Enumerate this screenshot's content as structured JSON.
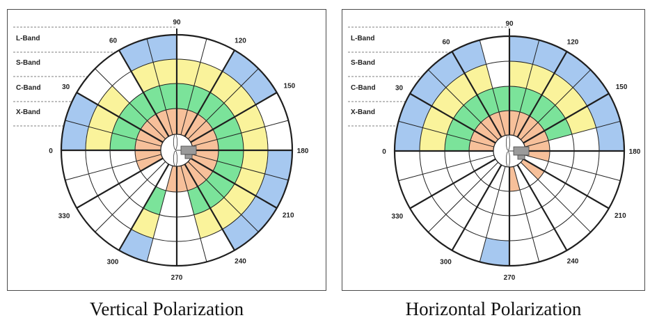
{
  "band_labels": [
    "L-Band",
    "S-Band",
    "C-Band",
    "X-Band"
  ],
  "angle_labels": [
    "0",
    "30",
    "60",
    "90",
    "120",
    "150",
    "180",
    "210",
    "240",
    "270",
    "300",
    "330"
  ],
  "colors": {
    "L-Band": "#a6c8f0",
    "S-Band": "#faf39b",
    "C-Band": "#7be39a",
    "X-Band": "#f7c09a",
    "empty": "#ffffff",
    "grid": "#1f1f1f"
  },
  "diagrams": [
    {
      "caption": "Vertical Polarization",
      "ring_order": [
        "X-Band",
        "C-Band",
        "S-Band",
        "L-Band"
      ],
      "sectors_description": "24 sectors of 15 degrees each, starting at 0 deg (left), increasing clockwise toward 90 (top)",
      "sectors": [
        [
          "X-Band",
          "C-Band",
          "S-Band",
          "L-Band"
        ],
        [
          "X-Band",
          "C-Band",
          "S-Band",
          "L-Band"
        ],
        [
          "X-Band",
          "C-Band",
          "S-Band",
          "empty"
        ],
        [
          "X-Band",
          "C-Band",
          "empty",
          "empty"
        ],
        [
          "X-Band",
          "C-Band",
          "S-Band",
          "L-Band"
        ],
        [
          "X-Band",
          "C-Band",
          "S-Band",
          "L-Band"
        ],
        [
          "X-Band",
          "C-Band",
          "S-Band",
          "empty"
        ],
        [
          "X-Band",
          "C-Band",
          "S-Band",
          "empty"
        ],
        [
          "X-Band",
          "C-Band",
          "S-Band",
          "L-Band"
        ],
        [
          "X-Band",
          "C-Band",
          "S-Band",
          "L-Band"
        ],
        [
          "X-Band",
          "C-Band",
          "S-Band",
          "empty"
        ],
        [
          "X-Band",
          "C-Band",
          "S-Band",
          "empty"
        ],
        [
          "X-Band",
          "C-Band",
          "S-Band",
          "L-Band"
        ],
        [
          "X-Band",
          "C-Band",
          "S-Band",
          "L-Band"
        ],
        [
          "X-Band",
          "C-Band",
          "S-Band",
          "L-Band"
        ],
        [
          "X-Band",
          "C-Band",
          "S-Band",
          "L-Band"
        ],
        [
          "X-Band",
          "C-Band",
          "S-Band",
          "empty"
        ],
        [
          "X-Band",
          "empty",
          "empty",
          "empty"
        ],
        [
          "X-Band",
          "empty",
          "empty",
          "empty"
        ],
        [
          "empty",
          "C-Band",
          "S-Band",
          "L-Band"
        ],
        [
          "empty",
          "empty",
          "empty",
          "empty"
        ],
        [
          "empty",
          "empty",
          "empty",
          "empty"
        ],
        [
          "X-Band",
          "empty",
          "empty",
          "empty"
        ],
        [
          "X-Band",
          "empty",
          "empty",
          "empty"
        ]
      ]
    },
    {
      "caption": "Horizontal Polarization",
      "ring_order": [
        "X-Band",
        "C-Band",
        "S-Band",
        "L-Band"
      ],
      "sectors_description": "24 sectors of 15 degrees each, starting at 0 deg (left), increasing clockwise toward 90 (top)",
      "sectors": [
        [
          "X-Band",
          "C-Band",
          "S-Band",
          "L-Band"
        ],
        [
          "X-Band",
          "C-Band",
          "S-Band",
          "L-Band"
        ],
        [
          "X-Band",
          "C-Band",
          "S-Band",
          "L-Band"
        ],
        [
          "X-Band",
          "C-Band",
          "S-Band",
          "L-Band"
        ],
        [
          "X-Band",
          "C-Band",
          "S-Band",
          "L-Band"
        ],
        [
          "X-Band",
          "C-Band",
          "empty",
          "empty"
        ],
        [
          "X-Band",
          "C-Band",
          "S-Band",
          "L-Band"
        ],
        [
          "X-Band",
          "C-Band",
          "S-Band",
          "L-Band"
        ],
        [
          "X-Band",
          "C-Band",
          "S-Band",
          "L-Band"
        ],
        [
          "X-Band",
          "C-Band",
          "S-Band",
          "L-Band"
        ],
        [
          "X-Band",
          "C-Band",
          "S-Band",
          "L-Band"
        ],
        [
          "X-Band",
          "empty",
          "empty",
          "L-Band"
        ],
        [
          "X-Band",
          "empty",
          "empty",
          "empty"
        ],
        [
          "empty",
          "empty",
          "empty",
          "empty"
        ],
        [
          "X-Band",
          "empty",
          "empty",
          "empty"
        ],
        [
          "empty",
          "empty",
          "empty",
          "empty"
        ],
        [
          "empty",
          "empty",
          "empty",
          "empty"
        ],
        [
          "X-Band",
          "empty",
          "empty",
          "empty"
        ],
        [
          "empty",
          "empty",
          "empty",
          "L-Band"
        ],
        [
          "empty",
          "empty",
          "empty",
          "empty"
        ],
        [
          "empty",
          "empty",
          "empty",
          "empty"
        ],
        [
          "empty",
          "empty",
          "empty",
          "empty"
        ],
        [
          "empty",
          "empty",
          "empty",
          "empty"
        ],
        [
          "empty",
          "empty",
          "empty",
          "empty"
        ]
      ]
    }
  ]
}
